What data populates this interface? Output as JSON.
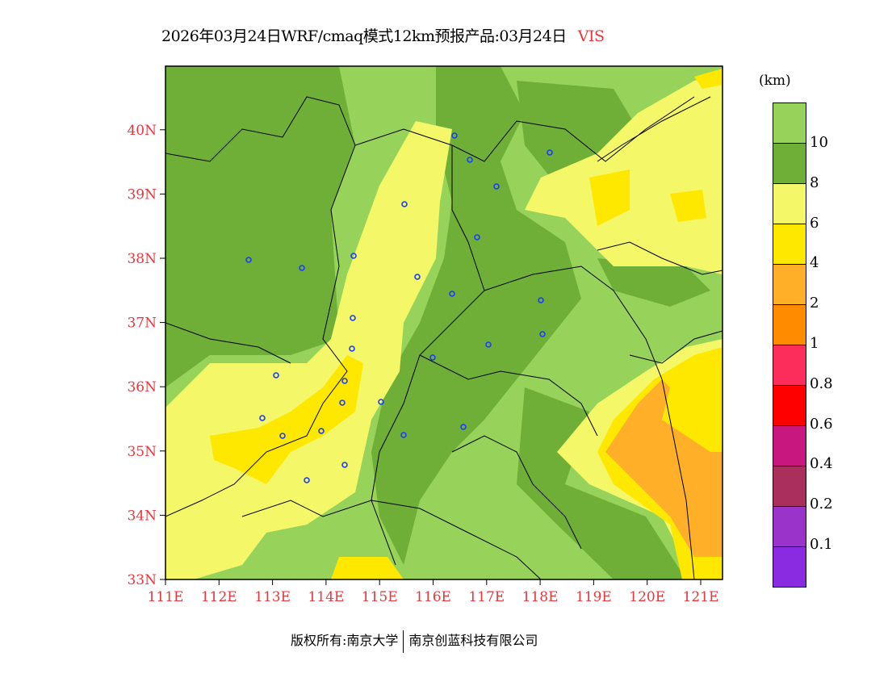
{
  "title": {
    "text": "2026年03月24日WRF/cmaq模式12km预报产品:03月24日",
    "variable": "VIS"
  },
  "axes": {
    "lat_ticks": [
      "33N",
      "34N",
      "35N",
      "36N",
      "37N",
      "38N",
      "39N",
      "40N"
    ],
    "lon_ticks": [
      "111E",
      "112E",
      "113E",
      "114E",
      "115E",
      "116E",
      "117E",
      "118E",
      "119E",
      "120E",
      "121E"
    ]
  },
  "legend": {
    "unit": "(km)",
    "colors": [
      "#97d35a",
      "#6faf38",
      "#f3f768",
      "#ffe800",
      "#ffb028",
      "#ff8c00",
      "#fc2d5a",
      "#ff0000",
      "#c8177f",
      "#ab2f5d",
      "#9a33c9",
      "#8a2be2"
    ],
    "labels": [
      "10",
      "8",
      "6",
      "4",
      "2",
      "1",
      "0.8",
      "0.6",
      "0.4",
      "0.2",
      "0.1"
    ]
  },
  "footer": {
    "copyright": "版权所有:南京大学",
    "company": "南京创蓝科技有限公司"
  }
}
